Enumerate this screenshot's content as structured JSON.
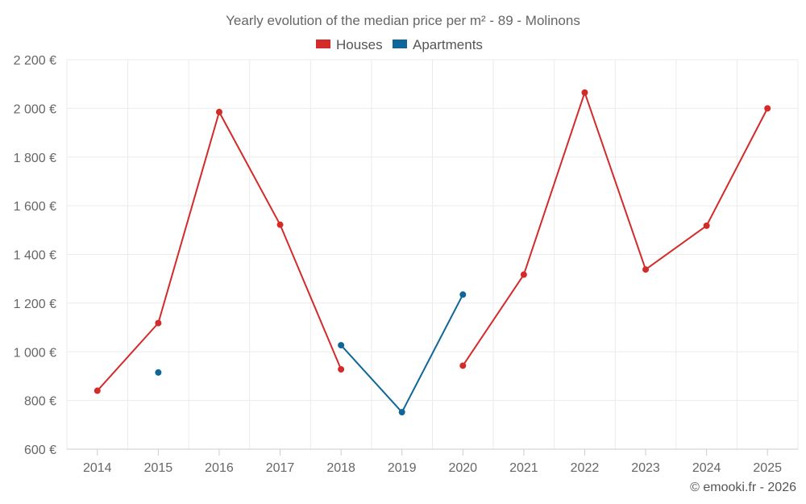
{
  "chart_data": {
    "type": "line",
    "title": "Yearly evolution of the median price per m² - 89 - Molinons",
    "categories": [
      "2014",
      "2015",
      "2016",
      "2017",
      "2018",
      "2019",
      "2020",
      "2021",
      "2022",
      "2023",
      "2024",
      "2025"
    ],
    "series": [
      {
        "name": "Houses",
        "color": "#d32a2a",
        "values": [
          840,
          1118,
          1985,
          1522,
          928,
          null,
          943,
          1317,
          2065,
          1338,
          1518,
          2000
        ]
      },
      {
        "name": "Apartments",
        "color": "#0f6698",
        "values": [
          null,
          915,
          null,
          null,
          1027,
          752,
          1235,
          null,
          null,
          null,
          null,
          null
        ]
      }
    ],
    "ylim": [
      600,
      2200
    ],
    "yticks": [
      600,
      800,
      1000,
      1200,
      1400,
      1600,
      1800,
      2000,
      2200
    ],
    "ytick_labels": [
      "600 €",
      "800 €",
      "1 000 €",
      "1 200 €",
      "1 400 €",
      "1 600 €",
      "1 800 €",
      "2 000 €",
      "2 200 €"
    ],
    "xlabel": "",
    "ylabel": "",
    "grid": true,
    "legend_position": "top-center"
  },
  "credit": "© emooki.fr - 2026"
}
